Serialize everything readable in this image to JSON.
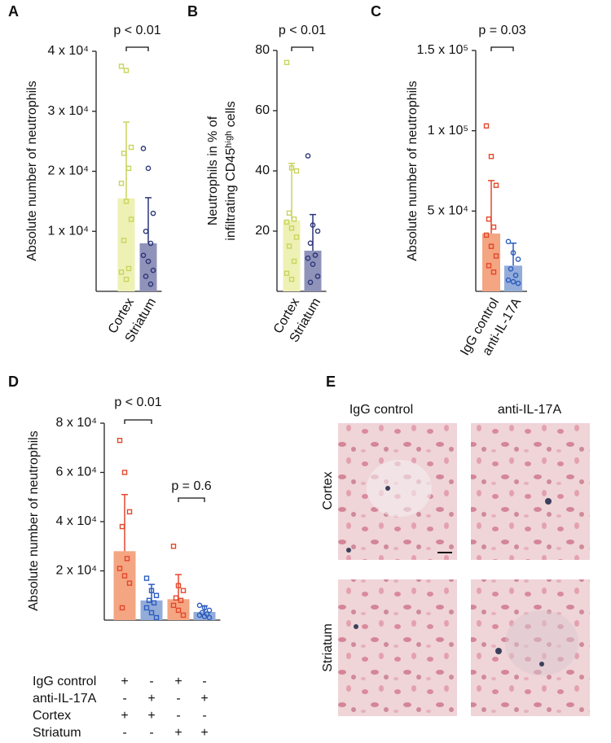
{
  "chart_data": [
    {
      "type": "bar",
      "panel": "A",
      "ylabel": [
        "Absolute number of neutrophils"
      ],
      "categories": [
        "Cortex",
        "Striatum"
      ],
      "values": [
        15500,
        8000
      ],
      "errors": [
        12700,
        7600
      ],
      "colors": [
        "#eef1b4",
        "#8f92b9"
      ],
      "point_colors": [
        "#c9d45c",
        "#2b3477"
      ],
      "points": [
        [
          37500,
          36800,
          24000,
          23000,
          20500,
          18000,
          15000,
          12000,
          8500,
          3800,
          3200,
          2000
        ],
        [
          23800,
          20500,
          13000,
          10000,
          8000,
          6000,
          5000,
          3500,
          2500,
          1200
        ]
      ],
      "ylim": [
        0,
        40000
      ],
      "yticks": [
        {
          "value": 10000,
          "label": "1 x 10⁴"
        },
        {
          "value": 20000,
          "label": "2 x 10⁴"
        },
        {
          "value": 30000,
          "label": "3 x 10⁴"
        },
        {
          "value": 40000,
          "label": "4 x 10⁴"
        }
      ],
      "annotations": [
        {
          "text": "p < 0.01",
          "between": [
            0,
            1
          ]
        }
      ]
    },
    {
      "type": "bar",
      "panel": "B",
      "ylabel": [
        "Neutrophils in % of",
        "infiltrating CD45ʰⁱᵍʰ cells"
      ],
      "categories": [
        "Cortex",
        "Striatum"
      ],
      "values": [
        23.5,
        13.5
      ],
      "errors": [
        19,
        12
      ],
      "colors": [
        "#eef1b4",
        "#8f92b9"
      ],
      "point_colors": [
        "#c9d45c",
        "#2b3477"
      ],
      "points": [
        [
          76,
          41,
          40,
          26,
          24,
          23,
          21,
          18,
          15,
          10,
          6,
          4
        ],
        [
          45,
          22,
          20,
          16,
          12,
          11,
          9,
          5,
          3
        ]
      ],
      "ylim": [
        0,
        80
      ],
      "yticks": [
        20,
        40,
        60,
        80
      ],
      "annotations": [
        {
          "text": "p < 0.01",
          "between": [
            0,
            1
          ]
        }
      ]
    },
    {
      "type": "bar",
      "panel": "C",
      "ylabel": [
        "Absolute number of neutrophils"
      ],
      "categories": [
        "IgG control",
        "anti-IL-17A"
      ],
      "values": [
        36000,
        16000
      ],
      "errors": [
        33000,
        14000
      ],
      "colors": [
        "#f4a582",
        "#93acd9"
      ],
      "point_colors": [
        "#e4472b",
        "#2c5cbf"
      ],
      "points": [
        [
          103000,
          84000,
          66000,
          45000,
          40000,
          35000,
          28000,
          22000,
          16000,
          12000
        ],
        [
          31000,
          24000,
          20000,
          14000,
          10000,
          7000,
          6000,
          5000
        ]
      ],
      "ylim": [
        0,
        150000
      ],
      "yticks": [
        {
          "value": 50000,
          "label": "5 x 10⁴"
        },
        {
          "value": 100000,
          "label": "1 x 10⁵"
        },
        {
          "value": 150000,
          "label": "1.5 x 10⁵"
        }
      ],
      "annotations": [
        {
          "text": "p = 0.03",
          "between": [
            0,
            1
          ]
        }
      ]
    },
    {
      "type": "bar",
      "panel": "D",
      "ylabel": [
        "Absolute number of neutrophils"
      ],
      "values": [
        28000,
        8000,
        8500,
        3300
      ],
      "errors": [
        23000,
        6500,
        10000,
        2500
      ],
      "colors": [
        "#f4a582",
        "#93acd9",
        "#f4a582",
        "#93acd9"
      ],
      "point_colors": [
        "#e4472b",
        "#2c5cbf",
        "#e4472b",
        "#2c5cbf"
      ],
      "points": [
        [
          73000,
          60000,
          44000,
          38000,
          25000,
          21000,
          18000,
          15000,
          5000
        ],
        [
          17000,
          12000,
          10000,
          8000,
          7000,
          5000,
          3000,
          1000
        ],
        [
          30000,
          14000,
          12000,
          9000,
          8000,
          6000,
          4000,
          2000
        ],
        [
          6000,
          5000,
          4000,
          3000,
          2500,
          2000,
          1500,
          1000
        ]
      ],
      "ylim": [
        0,
        80000
      ],
      "yticks": [
        {
          "value": 20000,
          "label": "2 x 10⁴"
        },
        {
          "value": 40000,
          "label": "4 x 10⁴"
        },
        {
          "value": 60000,
          "label": "6 x 10⁴"
        },
        {
          "value": 80000,
          "label": "8 x 10⁴"
        }
      ],
      "annotations": [
        {
          "text": "p < 0.01",
          "between": [
            0,
            1
          ]
        },
        {
          "text": "p = 0.6",
          "between": [
            2,
            3
          ]
        }
      ],
      "design": [
        {
          "label": "IgG control",
          "marks": [
            "+",
            "-",
            "+",
            "-"
          ]
        },
        {
          "label": "anti-IL-17A",
          "marks": [
            "-",
            "+",
            "-",
            "+"
          ]
        },
        {
          "label": "Cortex",
          "marks": [
            "+",
            "+",
            "-",
            "-"
          ]
        },
        {
          "label": "Striatum",
          "marks": [
            "-",
            "-",
            "+",
            "+"
          ]
        }
      ]
    }
  ],
  "figure_e": {
    "panel": "E",
    "columns": [
      "IgG control",
      "anti-IL-17A"
    ],
    "rows": [
      "Cortex",
      "Striatum"
    ]
  }
}
